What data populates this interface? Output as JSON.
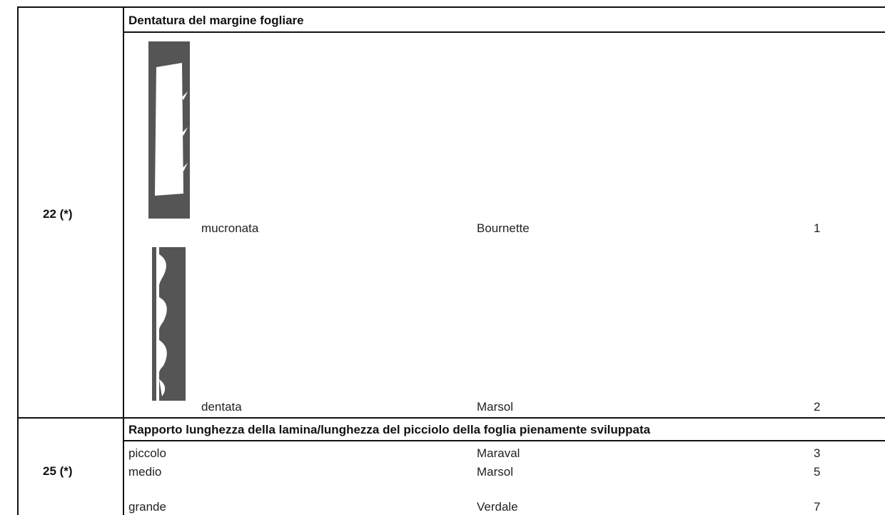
{
  "rows": [
    {
      "id": "22 (*)",
      "heading": "Dentatura del margine fogliare",
      "items": [
        {
          "term": "mucronata",
          "example": "Bournette",
          "note": 1
        },
        {
          "term": "dentata",
          "example": "Marsol",
          "note": 2
        }
      ]
    },
    {
      "id": "25 (*)",
      "heading": "Rapporto lunghezza della lamina/lunghezza del picciolo della foglia pienamente sviluppata",
      "items": [
        {
          "term": "piccolo",
          "example": "Maraval",
          "note": 3
        },
        {
          "term": "medio",
          "example": "Marsol",
          "note": 5
        },
        {
          "term": "grande",
          "example": "Verdale",
          "note": 7
        }
      ]
    }
  ]
}
